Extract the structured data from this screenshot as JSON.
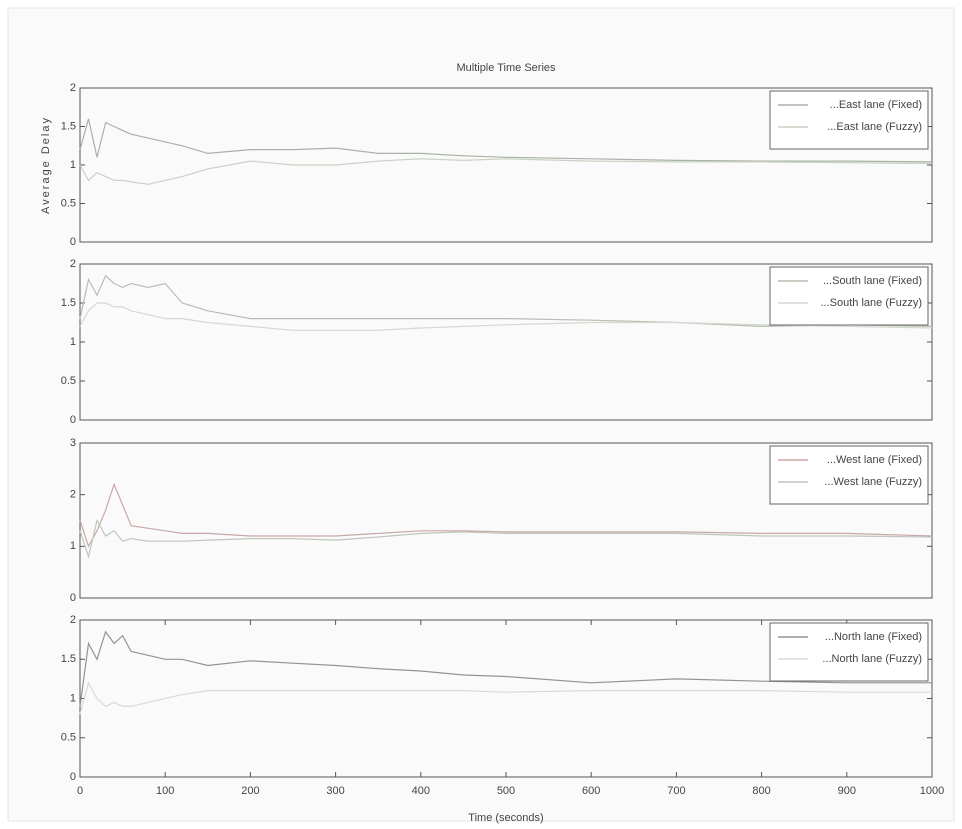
{
  "chart_data": [
    {
      "type": "line",
      "title": "Multiple Time Series",
      "y_label": "Average Delay",
      "x": [
        0,
        10,
        20,
        30,
        40,
        50,
        60,
        80,
        100,
        120,
        150,
        200,
        250,
        300,
        350,
        400,
        450,
        500,
        600,
        700,
        800,
        900,
        1000
      ],
      "xlim": [
        0,
        1000
      ],
      "ylim": [
        0,
        2
      ],
      "yticks": [
        0,
        0.5,
        1,
        1.5,
        2
      ],
      "legend": "upper right",
      "series": [
        {
          "name": "...East lane (Fixed)",
          "color": "#a9b2a6",
          "values": [
            1.2,
            1.6,
            1.1,
            1.55,
            1.5,
            1.45,
            1.4,
            1.35,
            1.3,
            1.25,
            1.15,
            1.2,
            1.2,
            1.22,
            1.15,
            1.15,
            1.12,
            1.1,
            1.08,
            1.06,
            1.05,
            1.05,
            1.04
          ]
        },
        {
          "name": "...East lane (Fuzzy)",
          "color": "#c9d2c4",
          "values": [
            1.0,
            0.8,
            0.9,
            0.85,
            0.8,
            0.8,
            0.78,
            0.75,
            0.8,
            0.85,
            0.95,
            1.05,
            1.0,
            1.0,
            1.05,
            1.08,
            1.06,
            1.08,
            1.05,
            1.04,
            1.04,
            1.03,
            1.02
          ]
        }
      ]
    },
    {
      "type": "line",
      "x": [
        0,
        10,
        20,
        30,
        40,
        50,
        60,
        80,
        100,
        120,
        150,
        200,
        250,
        300,
        350,
        400,
        450,
        500,
        600,
        700,
        800,
        900,
        1000
      ],
      "xlim": [
        0,
        1000
      ],
      "ylim": [
        0,
        2
      ],
      "yticks": [
        0,
        0.5,
        1,
        1.5,
        2
      ],
      "legend": "upper right",
      "series": [
        {
          "name": "...South lane (Fixed)",
          "color": "#b6bfb2",
          "values": [
            1.3,
            1.8,
            1.6,
            1.85,
            1.75,
            1.7,
            1.75,
            1.7,
            1.75,
            1.5,
            1.4,
            1.3,
            1.3,
            1.3,
            1.3,
            1.3,
            1.3,
            1.3,
            1.28,
            1.25,
            1.2,
            1.22,
            1.2
          ]
        },
        {
          "name": "...South lane (Fuzzy)",
          "color": "#d3dad0",
          "values": [
            1.2,
            1.4,
            1.5,
            1.5,
            1.45,
            1.45,
            1.4,
            1.35,
            1.3,
            1.3,
            1.25,
            1.2,
            1.15,
            1.15,
            1.15,
            1.18,
            1.2,
            1.22,
            1.25,
            1.25,
            1.22,
            1.2,
            1.18
          ]
        }
      ]
    },
    {
      "type": "line",
      "x": [
        0,
        10,
        20,
        30,
        40,
        50,
        60,
        80,
        100,
        120,
        150,
        200,
        250,
        300,
        350,
        400,
        450,
        500,
        600,
        700,
        800,
        900,
        1000
      ],
      "xlim": [
        0,
        1000
      ],
      "ylim": [
        0,
        3
      ],
      "yticks": [
        0,
        1,
        2,
        3
      ],
      "legend": "upper right",
      "series": [
        {
          "name": "...West lane (Fixed)",
          "color": "#c9a8a8",
          "values": [
            1.5,
            1.0,
            1.3,
            1.7,
            2.2,
            1.8,
            1.4,
            1.35,
            1.3,
            1.25,
            1.25,
            1.2,
            1.2,
            1.2,
            1.25,
            1.3,
            1.3,
            1.28,
            1.28,
            1.28,
            1.25,
            1.25,
            1.2
          ]
        },
        {
          "name": "...West lane (Fuzzy)",
          "color": "#bfc6bb",
          "values": [
            1.3,
            0.8,
            1.5,
            1.2,
            1.3,
            1.1,
            1.15,
            1.1,
            1.1,
            1.1,
            1.12,
            1.15,
            1.15,
            1.12,
            1.18,
            1.25,
            1.28,
            1.25,
            1.25,
            1.25,
            1.2,
            1.2,
            1.18
          ]
        }
      ]
    },
    {
      "type": "line",
      "x_label": "Time (seconds)",
      "x": [
        0,
        10,
        20,
        30,
        40,
        50,
        60,
        80,
        100,
        120,
        150,
        200,
        250,
        300,
        350,
        400,
        450,
        500,
        600,
        700,
        800,
        900,
        1000
      ],
      "xlim": [
        0,
        1000
      ],
      "xticks": [
        0,
        100,
        200,
        300,
        400,
        500,
        600,
        700,
        800,
        900,
        1000
      ],
      "ylim": [
        0,
        2
      ],
      "yticks": [
        0,
        0.5,
        1,
        1.5,
        2
      ],
      "legend": "upper right",
      "series": [
        {
          "name": "...North lane (Fixed)",
          "color": "#8f978c",
          "values": [
            0.9,
            1.7,
            1.5,
            1.85,
            1.7,
            1.8,
            1.6,
            1.55,
            1.5,
            1.5,
            1.42,
            1.48,
            1.45,
            1.42,
            1.38,
            1.35,
            1.3,
            1.28,
            1.2,
            1.25,
            1.22,
            1.2,
            1.2
          ]
        },
        {
          "name": "...North lane (Fuzzy)",
          "color": "#d6dcd3",
          "values": [
            0.8,
            1.2,
            1.0,
            0.9,
            0.95,
            0.9,
            0.9,
            0.95,
            1.0,
            1.05,
            1.1,
            1.1,
            1.1,
            1.1,
            1.1,
            1.1,
            1.1,
            1.08,
            1.1,
            1.1,
            1.1,
            1.08,
            1.08
          ]
        }
      ]
    }
  ]
}
